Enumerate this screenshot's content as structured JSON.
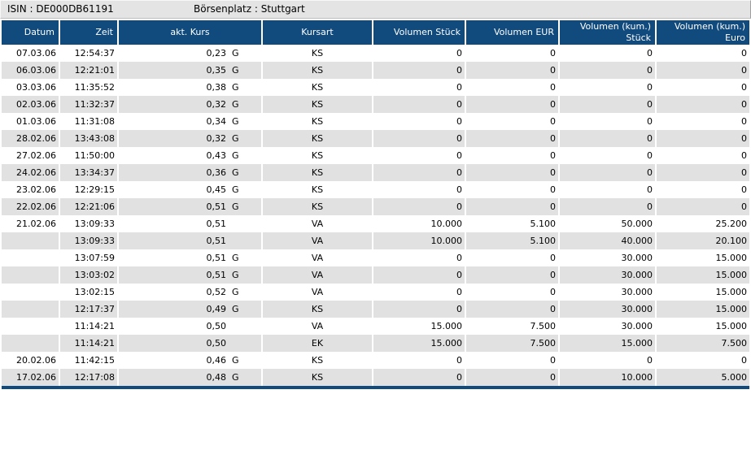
{
  "topbar": {
    "isin_label": "ISIN : DE000DB61191",
    "platz_label": "Börsenplatz : Stuttgart"
  },
  "table": {
    "columns": [
      "Datum",
      "Zeit",
      "akt. Kurs",
      "Kursart",
      "Volumen Stück",
      "Volumen EUR",
      "Volumen (kum.)\nStück",
      "Volumen (kum.)\nEuro"
    ],
    "rows": [
      {
        "datum": "07.03.06",
        "zeit": "12:54:37",
        "kurs": "0,23",
        "suffix": "G",
        "kursart": "KS",
        "vol_stueck": "0",
        "vol_eur": "0",
        "kum_stueck": "0",
        "kum_euro": "0"
      },
      {
        "datum": "06.03.06",
        "zeit": "12:21:01",
        "kurs": "0,35",
        "suffix": "G",
        "kursart": "KS",
        "vol_stueck": "0",
        "vol_eur": "0",
        "kum_stueck": "0",
        "kum_euro": "0"
      },
      {
        "datum": "03.03.06",
        "zeit": "11:35:52",
        "kurs": "0,38",
        "suffix": "G",
        "kursart": "KS",
        "vol_stueck": "0",
        "vol_eur": "0",
        "kum_stueck": "0",
        "kum_euro": "0"
      },
      {
        "datum": "02.03.06",
        "zeit": "11:32:37",
        "kurs": "0,32",
        "suffix": "G",
        "kursart": "KS",
        "vol_stueck": "0",
        "vol_eur": "0",
        "kum_stueck": "0",
        "kum_euro": "0"
      },
      {
        "datum": "01.03.06",
        "zeit": "11:31:08",
        "kurs": "0,34",
        "suffix": "G",
        "kursart": "KS",
        "vol_stueck": "0",
        "vol_eur": "0",
        "kum_stueck": "0",
        "kum_euro": "0"
      },
      {
        "datum": "28.02.06",
        "zeit": "13:43:08",
        "kurs": "0,32",
        "suffix": "G",
        "kursart": "KS",
        "vol_stueck": "0",
        "vol_eur": "0",
        "kum_stueck": "0",
        "kum_euro": "0"
      },
      {
        "datum": "27.02.06",
        "zeit": "11:50:00",
        "kurs": "0,43",
        "suffix": "G",
        "kursart": "KS",
        "vol_stueck": "0",
        "vol_eur": "0",
        "kum_stueck": "0",
        "kum_euro": "0"
      },
      {
        "datum": "24.02.06",
        "zeit": "13:34:37",
        "kurs": "0,36",
        "suffix": "G",
        "kursart": "KS",
        "vol_stueck": "0",
        "vol_eur": "0",
        "kum_stueck": "0",
        "kum_euro": "0"
      },
      {
        "datum": "23.02.06",
        "zeit": "12:29:15",
        "kurs": "0,45",
        "suffix": "G",
        "kursart": "KS",
        "vol_stueck": "0",
        "vol_eur": "0",
        "kum_stueck": "0",
        "kum_euro": "0"
      },
      {
        "datum": "22.02.06",
        "zeit": "12:21:06",
        "kurs": "0,51",
        "suffix": "G",
        "kursart": "KS",
        "vol_stueck": "0",
        "vol_eur": "0",
        "kum_stueck": "0",
        "kum_euro": "0"
      },
      {
        "datum": "21.02.06",
        "zeit": "13:09:33",
        "kurs": "0,51",
        "suffix": "",
        "kursart": "VA",
        "vol_stueck": "10.000",
        "vol_eur": "5.100",
        "kum_stueck": "50.000",
        "kum_euro": "25.200"
      },
      {
        "datum": "",
        "zeit": "13:09:33",
        "kurs": "0,51",
        "suffix": "",
        "kursart": "VA",
        "vol_stueck": "10.000",
        "vol_eur": "5.100",
        "kum_stueck": "40.000",
        "kum_euro": "20.100"
      },
      {
        "datum": "",
        "zeit": "13:07:59",
        "kurs": "0,51",
        "suffix": "G",
        "kursart": "VA",
        "vol_stueck": "0",
        "vol_eur": "0",
        "kum_stueck": "30.000",
        "kum_euro": "15.000"
      },
      {
        "datum": "",
        "zeit": "13:03:02",
        "kurs": "0,51",
        "suffix": "G",
        "kursart": "VA",
        "vol_stueck": "0",
        "vol_eur": "0",
        "kum_stueck": "30.000",
        "kum_euro": "15.000"
      },
      {
        "datum": "",
        "zeit": "13:02:15",
        "kurs": "0,52",
        "suffix": "G",
        "kursart": "VA",
        "vol_stueck": "0",
        "vol_eur": "0",
        "kum_stueck": "30.000",
        "kum_euro": "15.000"
      },
      {
        "datum": "",
        "zeit": "12:17:37",
        "kurs": "0,49",
        "suffix": "G",
        "kursart": "KS",
        "vol_stueck": "0",
        "vol_eur": "0",
        "kum_stueck": "30.000",
        "kum_euro": "15.000"
      },
      {
        "datum": "",
        "zeit": "11:14:21",
        "kurs": "0,50",
        "suffix": "",
        "kursart": "VA",
        "vol_stueck": "15.000",
        "vol_eur": "7.500",
        "kum_stueck": "30.000",
        "kum_euro": "15.000"
      },
      {
        "datum": "",
        "zeit": "11:14:21",
        "kurs": "0,50",
        "suffix": "",
        "kursart": "EK",
        "vol_stueck": "15.000",
        "vol_eur": "7.500",
        "kum_stueck": "15.000",
        "kum_euro": "7.500"
      },
      {
        "datum": "20.02.06",
        "zeit": "11:42:15",
        "kurs": "0,46",
        "suffix": "G",
        "kursart": "KS",
        "vol_stueck": "0",
        "vol_eur": "0",
        "kum_stueck": "0",
        "kum_euro": "0"
      },
      {
        "datum": "17.02.06",
        "zeit": "12:17:08",
        "kurs": "0,48",
        "suffix": "G",
        "kursart": "KS",
        "vol_stueck": "0",
        "vol_eur": "0",
        "kum_stueck": "10.000",
        "kum_euro": "5.000"
      }
    ]
  },
  "colors": {
    "header_bg": "#114A7D",
    "alt_row_bg": "#e1e1e1",
    "topbar_bg": "#e4e4e4",
    "header_text": "#ffffff"
  }
}
